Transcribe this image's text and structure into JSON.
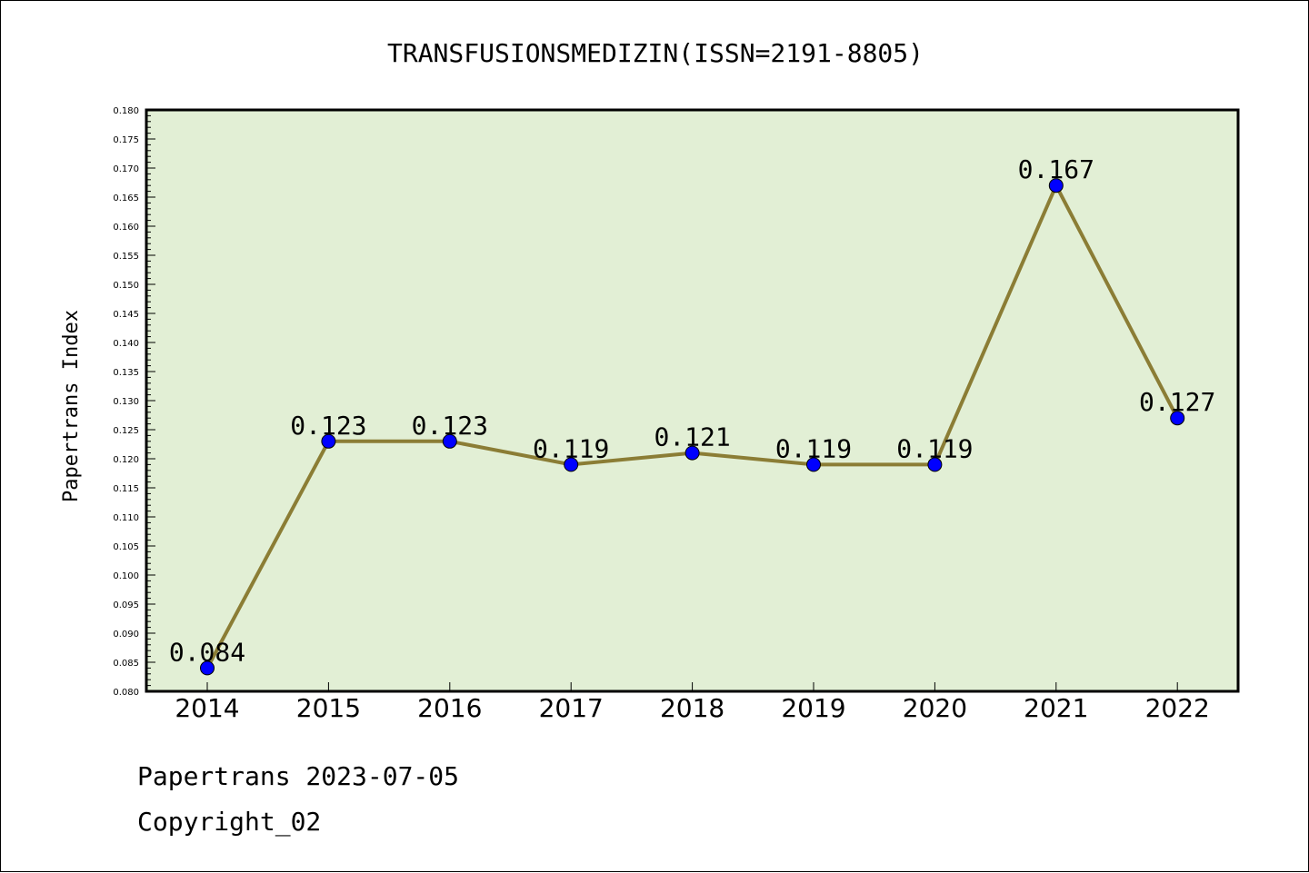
{
  "chart_data": {
    "type": "line",
    "title": "TRANSFUSIONSMEDIZIN(ISSN=2191-8805)",
    "xlabel": "",
    "ylabel": "Papertrans Index",
    "categories": [
      "2014",
      "2015",
      "2016",
      "2017",
      "2018",
      "2019",
      "2020",
      "2021",
      "2022"
    ],
    "values": [
      0.084,
      0.123,
      0.123,
      0.119,
      0.121,
      0.119,
      0.119,
      0.167,
      0.127
    ],
    "data_labels": [
      "0.084",
      "0.123",
      "0.123",
      "0.119",
      "0.121",
      "0.119",
      "0.119",
      "0.167",
      "0.127"
    ],
    "ylim": [
      0.08,
      0.18
    ],
    "yticks": [
      "0.080",
      "0.085",
      "0.090",
      "0.095",
      "0.100",
      "0.105",
      "0.110",
      "0.115",
      "0.120",
      "0.125",
      "0.130",
      "0.135",
      "0.140",
      "0.145",
      "0.150",
      "0.155",
      "0.160",
      "0.165",
      "0.170",
      "0.175",
      "0.180"
    ],
    "grid": false,
    "colors": {
      "plot_background": "#e2efd5",
      "line": "#8b7d35",
      "marker": "#0000ff"
    }
  },
  "footer": {
    "line1": "Papertrans 2023-07-05",
    "line2": "Copyright_02"
  }
}
